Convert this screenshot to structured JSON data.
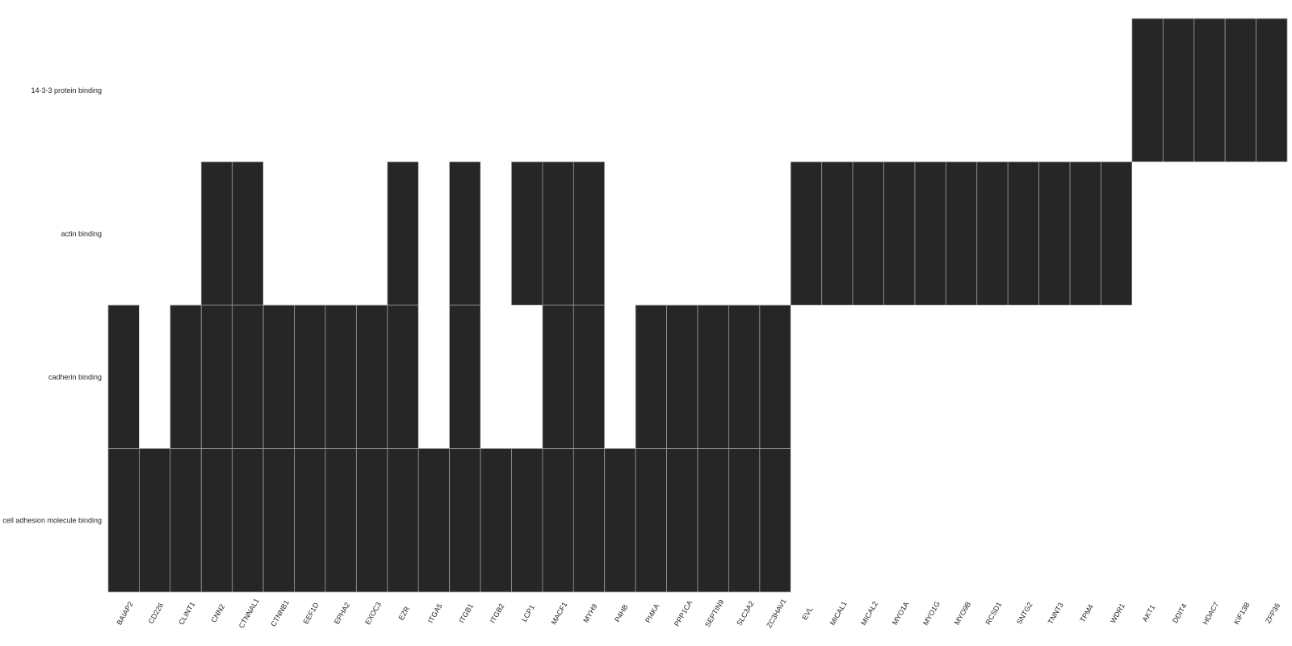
{
  "chart_data": {
    "type": "heatmap",
    "title": "",
    "xlabel": "",
    "ylabel": "",
    "grid": false,
    "colors": {
      "filled": "#262626",
      "empty": "#ffffff",
      "cell_border": "#9a9a9a",
      "text": "#262626"
    },
    "rows": [
      "14-3-3 protein binding",
      "actin binding",
      "cadherin binding",
      "cell adhesion molecule binding"
    ],
    "columns": [
      "BAIAP2",
      "CD226",
      "CLINT1",
      "CNN2",
      "CTNNAL1",
      "CTNNB1",
      "EEF1D",
      "EPHA2",
      "EXOC3",
      "EZR",
      "ITGA5",
      "ITGB1",
      "ITGB2",
      "LCP1",
      "MACF1",
      "MYH9",
      "P4HB",
      "PI4KA",
      "PPP1CA",
      "SEPTIN9",
      "SLC3A2",
      "ZC3HAV1",
      "EVL",
      "MICAL1",
      "MICAL2",
      "MYO1A",
      "MYO1G",
      "MYO9B",
      "RCSD1",
      "SNTG2",
      "TNNT3",
      "TPM4",
      "WDR1",
      "AKT1",
      "DDIT4",
      "HDAC7",
      "KIF13B",
      "ZFP36"
    ],
    "matrix": [
      [
        0,
        0,
        0,
        0,
        0,
        0,
        0,
        0,
        0,
        0,
        0,
        0,
        0,
        0,
        0,
        0,
        0,
        0,
        0,
        0,
        0,
        0,
        0,
        0,
        0,
        0,
        0,
        0,
        0,
        0,
        0,
        0,
        0,
        1,
        1,
        1,
        1,
        1
      ],
      [
        0,
        0,
        0,
        1,
        1,
        0,
        0,
        0,
        0,
        1,
        0,
        1,
        0,
        1,
        1,
        1,
        0,
        0,
        0,
        0,
        0,
        0,
        1,
        1,
        1,
        1,
        1,
        1,
        1,
        1,
        1,
        1,
        1,
        0,
        0,
        0,
        0,
        0
      ],
      [
        1,
        0,
        1,
        1,
        1,
        1,
        1,
        1,
        1,
        1,
        0,
        1,
        0,
        0,
        1,
        1,
        0,
        1,
        1,
        1,
        1,
        1,
        0,
        0,
        0,
        0,
        0,
        0,
        0,
        0,
        0,
        0,
        0,
        0,
        0,
        0,
        0,
        0
      ],
      [
        1,
        1,
        1,
        1,
        1,
        1,
        1,
        1,
        1,
        1,
        1,
        1,
        1,
        1,
        1,
        1,
        1,
        1,
        1,
        1,
        1,
        1,
        0,
        0,
        0,
        0,
        0,
        0,
        0,
        0,
        0,
        0,
        0,
        0,
        0,
        0,
        0,
        0
      ]
    ]
  }
}
